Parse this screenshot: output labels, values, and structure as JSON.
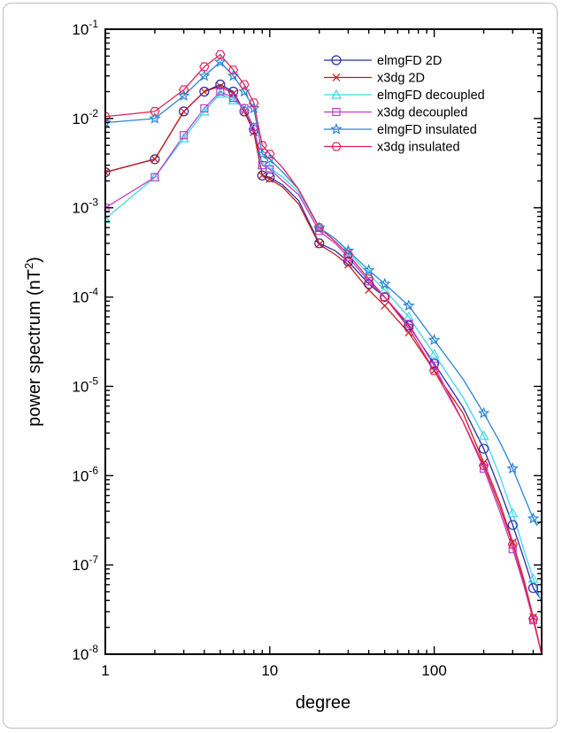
{
  "chart_data": {
    "type": "line",
    "title": "",
    "xlabel": "degree",
    "ylabel": "power spectrum (nT",
    "ylabel_sup": "2",
    "ylabel_close": ")",
    "xscale": "log",
    "yscale": "log",
    "xlim": [
      1,
      450
    ],
    "ylim": [
      1e-08,
      0.1
    ],
    "grid": false,
    "legend_position": "top-right",
    "x_ticks": [
      {
        "value": 1,
        "label": "1"
      },
      {
        "value": 10,
        "label": "10"
      },
      {
        "value": 100,
        "label": "100"
      }
    ],
    "y_ticks": [
      {
        "exp": -1,
        "base": "10",
        "power": "-1"
      },
      {
        "exp": -2,
        "base": "10",
        "power": "-2"
      },
      {
        "exp": -3,
        "base": "10",
        "power": "-3"
      },
      {
        "exp": -4,
        "base": "10",
        "power": "-4"
      },
      {
        "exp": -5,
        "base": "10",
        "power": "-5"
      },
      {
        "exp": -6,
        "base": "10",
        "power": "-6"
      },
      {
        "exp": -7,
        "base": "10",
        "power": "-7"
      },
      {
        "exp": -8,
        "base": "10",
        "power": "-8"
      }
    ],
    "series": [
      {
        "name": "elmgFD 2D",
        "color": "#2a2aa8",
        "marker": "circle",
        "points": [
          [
            1,
            0.0025
          ],
          [
            2,
            0.0035
          ],
          [
            3,
            0.012
          ],
          [
            4,
            0.02
          ],
          [
            5,
            0.024
          ],
          [
            6,
            0.02
          ],
          [
            7,
            0.012
          ],
          [
            8,
            0.0075
          ],
          [
            9,
            0.0023
          ],
          [
            10,
            0.0022
          ],
          [
            12,
            0.0018
          ],
          [
            15,
            0.0012
          ],
          [
            20,
            0.0004
          ],
          [
            25,
            0.00033
          ],
          [
            30,
            0.00025
          ],
          [
            40,
            0.00014
          ],
          [
            50,
            0.0001
          ],
          [
            70,
            4.8e-05
          ],
          [
            100,
            1.8e-05
          ],
          [
            150,
            5.8e-06
          ],
          [
            200,
            2e-06
          ],
          [
            250,
            7e-07
          ],
          [
            300,
            2.8e-07
          ],
          [
            350,
            1.2e-07
          ],
          [
            400,
            5.5e-08
          ],
          [
            450,
            4e-08
          ]
        ]
      },
      {
        "name": "x3dg   2D",
        "color": "#cc1b1b",
        "marker": "cross",
        "points": [
          [
            1,
            0.0025
          ],
          [
            2,
            0.0035
          ],
          [
            3,
            0.012
          ],
          [
            4,
            0.02
          ],
          [
            5,
            0.023
          ],
          [
            6,
            0.019
          ],
          [
            7,
            0.012
          ],
          [
            8,
            0.007
          ],
          [
            9,
            0.0023
          ],
          [
            10,
            0.0021
          ],
          [
            12,
            0.0017
          ],
          [
            15,
            0.0011
          ],
          [
            20,
            0.00039
          ],
          [
            25,
            0.0003
          ],
          [
            30,
            0.00023
          ],
          [
            40,
            0.00012
          ],
          [
            50,
            8e-05
          ],
          [
            70,
            4e-05
          ],
          [
            100,
            1.5e-05
          ],
          [
            150,
            5e-06
          ],
          [
            200,
            1.4e-06
          ],
          [
            250,
            5e-07
          ],
          [
            300,
            1.8e-07
          ],
          [
            350,
            7e-08
          ],
          [
            400,
            2.6e-08
          ],
          [
            450,
            1e-08
          ]
        ]
      },
      {
        "name": "elmgFD decoupled",
        "color": "#3fd8e8",
        "marker": "triangle",
        "points": [
          [
            1,
            0.00075
          ],
          [
            2,
            0.0022
          ],
          [
            3,
            0.006
          ],
          [
            4,
            0.012
          ],
          [
            5,
            0.019
          ],
          [
            6,
            0.016
          ],
          [
            7,
            0.013
          ],
          [
            8,
            0.008
          ],
          [
            9,
            0.003
          ],
          [
            10,
            0.0028
          ],
          [
            12,
            0.0022
          ],
          [
            15,
            0.0015
          ],
          [
            20,
            0.0006
          ],
          [
            25,
            0.00045
          ],
          [
            30,
            0.00032
          ],
          [
            40,
            0.00018
          ],
          [
            50,
            0.00012
          ],
          [
            70,
            6e-05
          ],
          [
            100,
            2.3e-05
          ],
          [
            150,
            7.5e-06
          ],
          [
            200,
            2.8e-06
          ],
          [
            250,
            1e-06
          ],
          [
            300,
            3.8e-07
          ],
          [
            350,
            1.5e-07
          ],
          [
            400,
            7e-08
          ],
          [
            450,
            3.8e-08
          ]
        ]
      },
      {
        "name": "x3dg   decoupled",
        "color": "#c23cc8",
        "marker": "square",
        "points": [
          [
            1,
            0.001
          ],
          [
            2,
            0.0022
          ],
          [
            3,
            0.0065
          ],
          [
            4,
            0.013
          ],
          [
            5,
            0.02
          ],
          [
            6,
            0.017
          ],
          [
            7,
            0.013
          ],
          [
            8,
            0.008
          ],
          [
            9,
            0.003
          ],
          [
            10,
            0.0027
          ],
          [
            12,
            0.002
          ],
          [
            15,
            0.0014
          ],
          [
            20,
            0.00055
          ],
          [
            25,
            0.0004
          ],
          [
            30,
            0.00028
          ],
          [
            40,
            0.00015
          ],
          [
            50,
            0.0001
          ],
          [
            70,
            5e-05
          ],
          [
            100,
            1.7e-05
          ],
          [
            150,
            4e-06
          ],
          [
            200,
            1.2e-06
          ],
          [
            250,
            4e-07
          ],
          [
            300,
            1.5e-07
          ],
          [
            350,
            6e-08
          ],
          [
            400,
            2.4e-08
          ],
          [
            450,
            1e-08
          ]
        ]
      },
      {
        "name": "elmgFD insulated",
        "color": "#2a84d8",
        "marker": "star",
        "points": [
          [
            1,
            0.009
          ],
          [
            2,
            0.01
          ],
          [
            3,
            0.018
          ],
          [
            4,
            0.03
          ],
          [
            5,
            0.043
          ],
          [
            6,
            0.03
          ],
          [
            7,
            0.02
          ],
          [
            8,
            0.013
          ],
          [
            9,
            0.004
          ],
          [
            10,
            0.0035
          ],
          [
            12,
            0.0025
          ],
          [
            15,
            0.0016
          ],
          [
            20,
            0.0006
          ],
          [
            25,
            0.00045
          ],
          [
            30,
            0.00033
          ],
          [
            40,
            0.0002
          ],
          [
            50,
            0.00014
          ],
          [
            70,
            8e-05
          ],
          [
            100,
            3.3e-05
          ],
          [
            150,
            1.2e-05
          ],
          [
            200,
            5e-06
          ],
          [
            250,
            2.4e-06
          ],
          [
            300,
            1.2e-06
          ],
          [
            350,
            6e-07
          ],
          [
            400,
            3.3e-07
          ],
          [
            420,
            2.8e-07
          ],
          [
            450,
            3.1e-07
          ]
        ]
      },
      {
        "name": "x3dg   insulated",
        "color": "#e0245a",
        "marker": "hexagon",
        "points": [
          [
            1,
            0.0105
          ],
          [
            2,
            0.012
          ],
          [
            3,
            0.021
          ],
          [
            4,
            0.038
          ],
          [
            5,
            0.052
          ],
          [
            6,
            0.035
          ],
          [
            7,
            0.024
          ],
          [
            8,
            0.015
          ],
          [
            9,
            0.005
          ],
          [
            10,
            0.004
          ],
          [
            12,
            0.0028
          ],
          [
            15,
            0.0016
          ],
          [
            20,
            0.0006
          ],
          [
            25,
            0.00042
          ],
          [
            30,
            0.0003
          ],
          [
            40,
            0.00016
          ],
          [
            50,
            0.0001
          ],
          [
            70,
            4.5e-05
          ],
          [
            100,
            1.5e-05
          ],
          [
            150,
            4e-06
          ],
          [
            200,
            1.3e-06
          ],
          [
            250,
            4.5e-07
          ],
          [
            300,
            1.7e-07
          ],
          [
            350,
            6.5e-08
          ],
          [
            400,
            2.5e-08
          ],
          [
            450,
            1e-08
          ]
        ]
      }
    ]
  }
}
